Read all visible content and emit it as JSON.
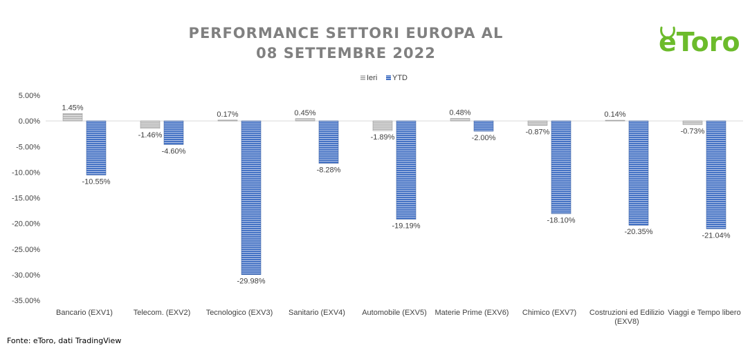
{
  "title_line1": "PERFORMANCE SETTORI EUROPA AL",
  "title_line2": "08 SETTEMBRE 2022",
  "logo_text": "eToro",
  "source": "Fonte: eToro, dati TradingView",
  "colors": {
    "ieri": "#a6a6a6",
    "ytd": "#4472c4",
    "title": "#808080",
    "logo": "#6cbb2b"
  },
  "chart_data": {
    "type": "bar",
    "title": "PERFORMANCE SETTORI EUROPA AL 08 SETTEMBRE 2022",
    "categories": [
      "Bancario (EXV1)",
      "Telecom. (EXV2)",
      "Tecnologico (EXV3)",
      "Sanitario (EXV4)",
      "Automobile (EXV5)",
      "Materie Prime (EXV6)",
      "Chimico (EXV7)",
      "Costruzioni ed Edilizio (EXV8)",
      "Viaggi e Tempo libero"
    ],
    "series": [
      {
        "name": "Ieri",
        "values": [
          1.45,
          -1.46,
          0.17,
          0.45,
          -1.89,
          0.48,
          -0.87,
          0.14,
          -0.73
        ]
      },
      {
        "name": "YTD",
        "values": [
          -10.55,
          -4.6,
          -29.98,
          -8.28,
          -19.19,
          -2.0,
          -18.1,
          -20.35,
          -21.04
        ]
      }
    ],
    "unit": "%",
    "ylim": [
      -35,
      5
    ],
    "yticks": [
      5,
      0,
      -5,
      -10,
      -15,
      -20,
      -25,
      -30,
      -35
    ],
    "grid": false,
    "legend_position": "top"
  }
}
